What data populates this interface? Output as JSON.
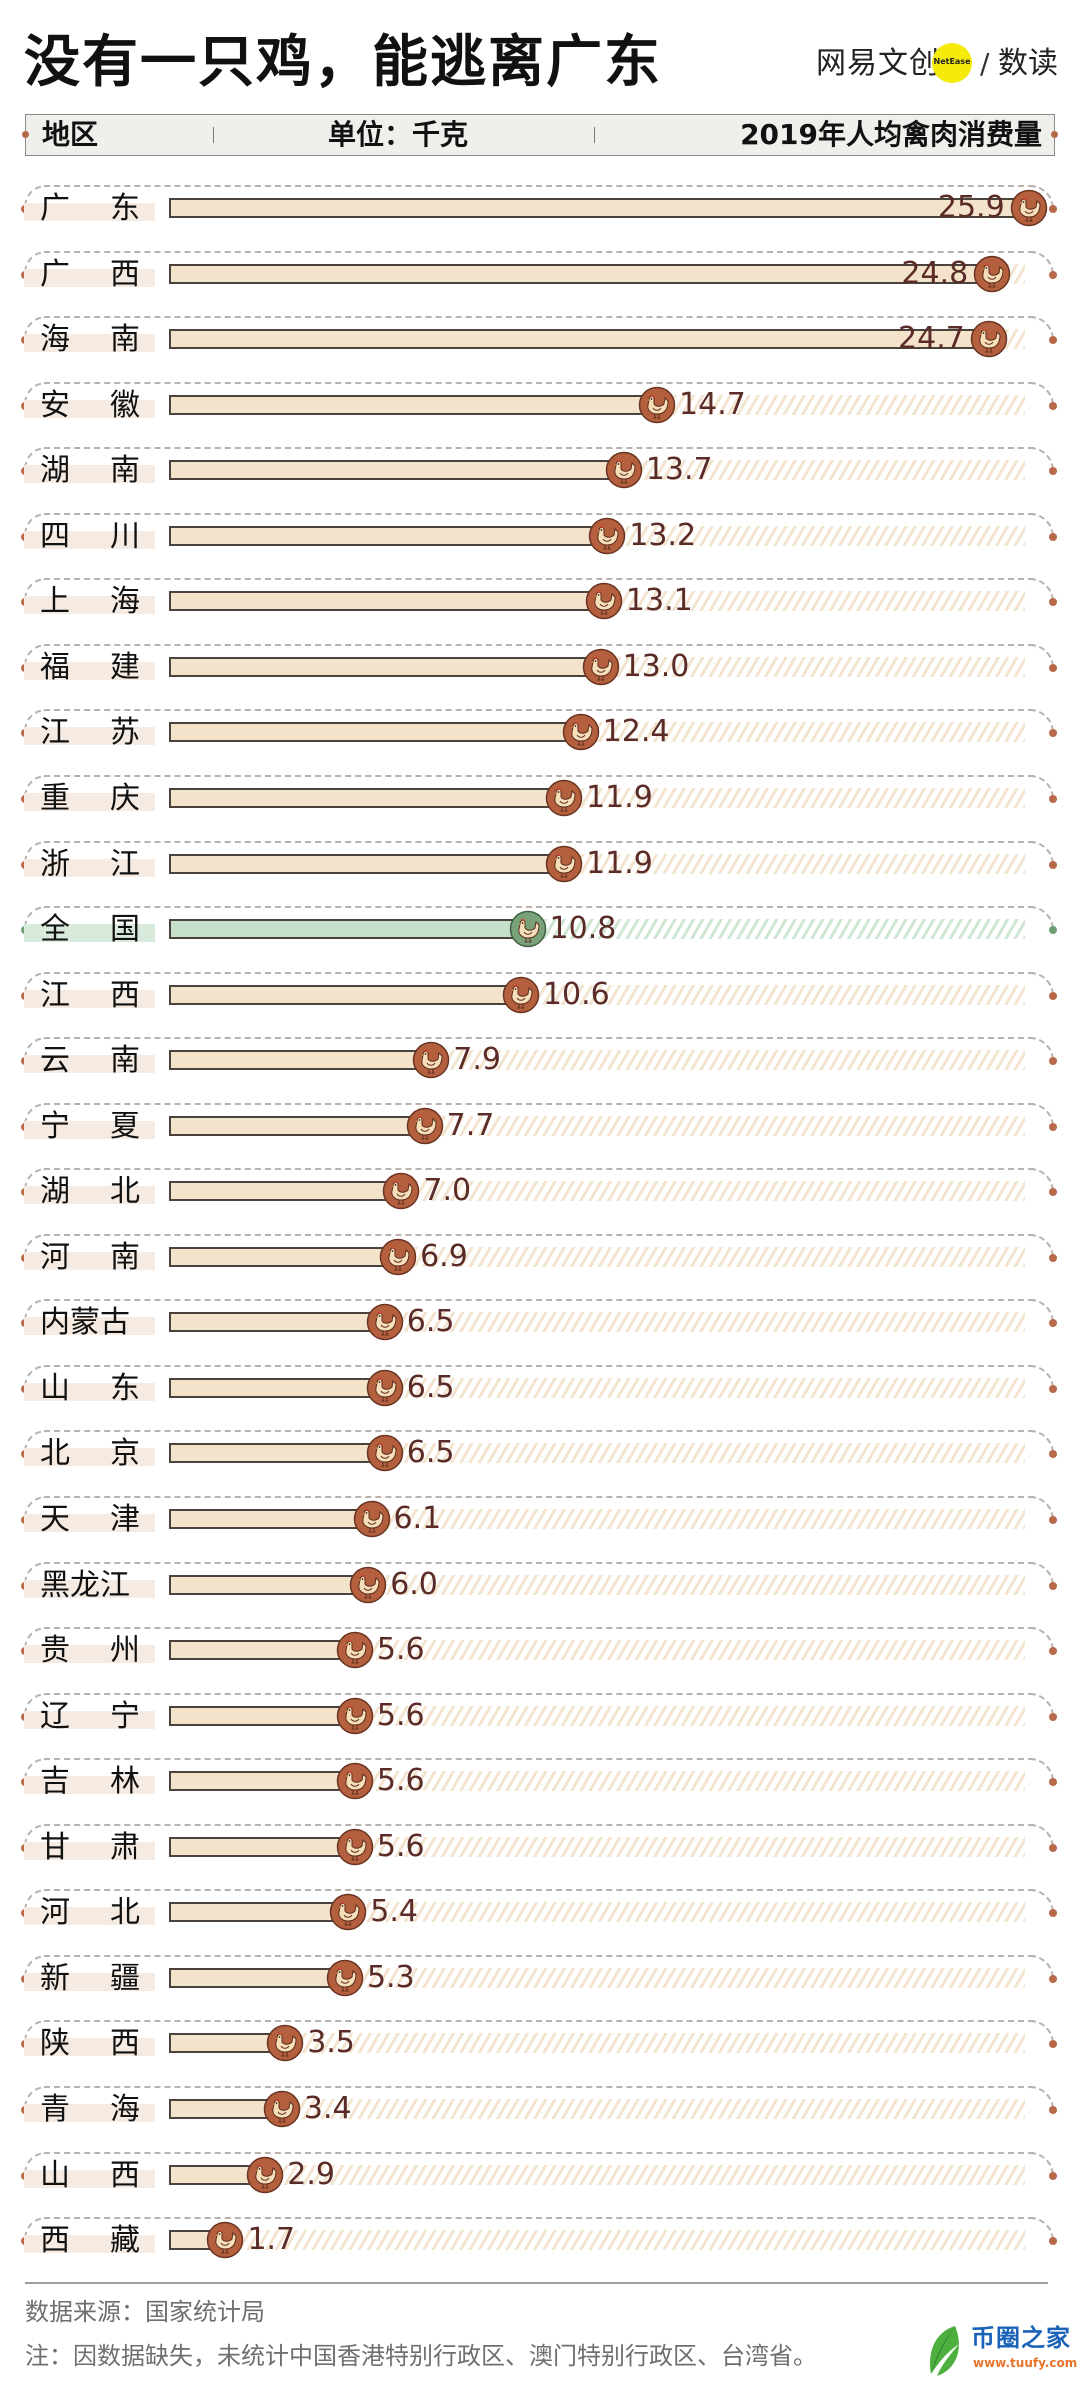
{
  "title": "没有一只鸡，能逃离广东",
  "logo": {
    "brand": "网易文创",
    "badge": "NetEase",
    "slash": "/",
    "column": "数读",
    "badge_color": "#f6ea0a"
  },
  "header": {
    "left": "地区",
    "middle": "单位：千克",
    "right": "2019年人均禽肉消费量"
  },
  "colors": {
    "bar_fill": "#f4e3cb",
    "bar_border": "#4a423d",
    "icon_circle": "#b4603e",
    "icon_border": "#6a3422",
    "national_bar_fill": "#c6dfca",
    "national_icon_circle": "#7aa27a",
    "value_text": "#5a2b27",
    "accent_dot": "#b8694a",
    "national_dot": "#6e9f74"
  },
  "rows": [
    {
      "region": "广东",
      "value": "25.9",
      "national": false
    },
    {
      "region": "广西",
      "value": "24.8",
      "national": false
    },
    {
      "region": "海南",
      "value": "24.7",
      "national": false
    },
    {
      "region": "安徽",
      "value": "14.7",
      "national": false
    },
    {
      "region": "湖南",
      "value": "13.7",
      "national": false
    },
    {
      "region": "四川",
      "value": "13.2",
      "national": false
    },
    {
      "region": "上海",
      "value": "13.1",
      "national": false
    },
    {
      "region": "福建",
      "value": "13.0",
      "national": false
    },
    {
      "region": "江苏",
      "value": "12.4",
      "national": false
    },
    {
      "region": "重庆",
      "value": "11.9",
      "national": false
    },
    {
      "region": "浙江",
      "value": "11.9",
      "national": false
    },
    {
      "region": "全国",
      "value": "10.8",
      "national": true
    },
    {
      "region": "江西",
      "value": "10.6",
      "national": false
    },
    {
      "region": "云南",
      "value": "7.9",
      "national": false
    },
    {
      "region": "宁夏",
      "value": "7.7",
      "national": false
    },
    {
      "region": "湖北",
      "value": "7.0",
      "national": false
    },
    {
      "region": "河南",
      "value": "6.9",
      "national": false
    },
    {
      "region": "内蒙古",
      "value": "6.5",
      "national": false
    },
    {
      "region": "山东",
      "value": "6.5",
      "national": false
    },
    {
      "region": "北京",
      "value": "6.5",
      "national": false
    },
    {
      "region": "天津",
      "value": "6.1",
      "national": false
    },
    {
      "region": "黑龙江",
      "value": "6.0",
      "national": false
    },
    {
      "region": "贵州",
      "value": "5.6",
      "national": false
    },
    {
      "region": "辽宁",
      "value": "5.6",
      "national": false
    },
    {
      "region": "吉林",
      "value": "5.6",
      "national": false
    },
    {
      "region": "甘肃",
      "value": "5.6",
      "national": false
    },
    {
      "region": "河北",
      "value": "5.4",
      "national": false
    },
    {
      "region": "新疆",
      "value": "5.3",
      "national": false
    },
    {
      "region": "陕西",
      "value": "3.5",
      "national": false
    },
    {
      "region": "青海",
      "value": "3.4",
      "national": false
    },
    {
      "region": "山西",
      "value": "2.9",
      "national": false
    },
    {
      "region": "西藏",
      "value": "1.7",
      "national": false
    }
  ],
  "footer": {
    "source": "数据来源：国家统计局",
    "note": "注：因数据缺失，未统计中国香港特别行政区、澳门特别行政区、台湾省。"
  },
  "watermark": {
    "name": "币圈之家",
    "url": "www.tuufy.com"
  },
  "chart_data": {
    "type": "bar",
    "orientation": "horizontal",
    "title": "没有一只鸡，能逃离广东",
    "subtitle": "2019年人均禽肉消费量",
    "unit": "千克",
    "xlabel": "2019年人均禽肉消费量（千克）",
    "ylabel": "地区",
    "categories": [
      "广东",
      "广西",
      "海南",
      "安徽",
      "湖南",
      "四川",
      "上海",
      "福建",
      "江苏",
      "重庆",
      "浙江",
      "全国",
      "江西",
      "云南",
      "宁夏",
      "湖北",
      "河南",
      "内蒙古",
      "山东",
      "北京",
      "天津",
      "黑龙江",
      "贵州",
      "辽宁",
      "吉林",
      "甘肃",
      "河北",
      "新疆",
      "陕西",
      "青海",
      "山西",
      "西藏"
    ],
    "values": [
      25.9,
      24.8,
      24.7,
      14.7,
      13.7,
      13.2,
      13.1,
      13.0,
      12.4,
      11.9,
      11.9,
      10.8,
      10.6,
      7.9,
      7.7,
      7.0,
      6.9,
      6.5,
      6.5,
      6.5,
      6.1,
      6.0,
      5.6,
      5.6,
      5.6,
      5.6,
      5.4,
      5.3,
      3.5,
      3.4,
      2.9,
      1.7
    ],
    "highlight": "全国",
    "xlim": [
      0,
      26
    ],
    "grid": false,
    "legend": null,
    "annotations": [
      "数据来源：国家统计局",
      "注：因数据缺失，未统计中国香港特别行政区、澳门特别行政区、台湾省。"
    ]
  }
}
